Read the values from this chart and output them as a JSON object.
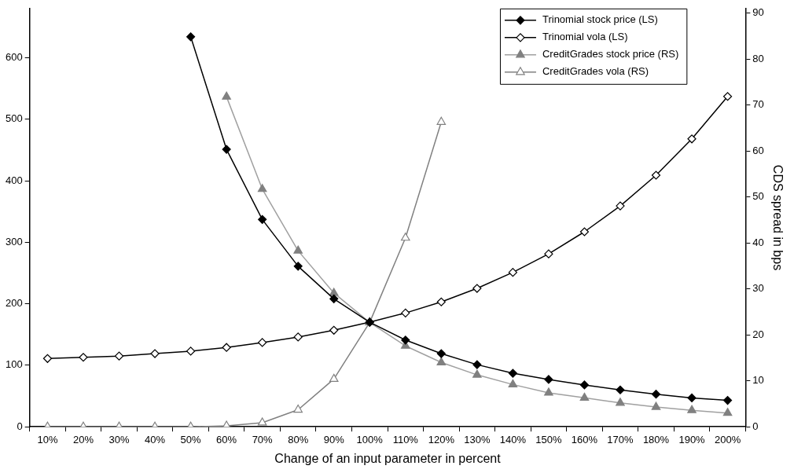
{
  "chart_data": {
    "type": "line",
    "xlabel": "Change of an input parameter in percent",
    "y2label": "CDS spread in bps",
    "categories": [
      "10%",
      "20%",
      "30%",
      "40%",
      "50%",
      "60%",
      "70%",
      "80%",
      "90%",
      "100%",
      "110%",
      "120%",
      "130%",
      "140%",
      "150%",
      "160%",
      "170%",
      "180%",
      "190%",
      "200%"
    ],
    "series": [
      {
        "name": "Trinomial stock price (LS)",
        "color": "#000000",
        "marker": "diamond",
        "values": [
          null,
          null,
          null,
          null,
          634,
          451,
          337,
          261,
          208,
          170,
          141,
          119,
          101,
          87,
          77,
          68,
          60,
          53,
          47,
          43
        ]
      },
      {
        "name": "Trinomial vola (LS)",
        "color": "#000000",
        "marker": "diamond",
        "values": [
          111,
          113,
          115,
          119,
          123,
          129,
          137,
          146,
          157,
          170,
          185,
          203,
          225,
          251,
          281,
          317,
          359,
          409,
          468,
          537
        ]
      },
      {
        "name": "CreditGrades stock price (RS)",
        "color": "#a0a0a0",
        "marker": "triangle",
        "axis": "y2",
        "values": [
          null,
          null,
          null,
          null,
          null,
          71.8,
          51.7,
          38.3,
          29.1,
          22.7,
          17.6,
          14.0,
          11.3,
          9.2,
          7.4,
          6.3,
          5.2,
          4.3,
          3.6,
          3.0
        ]
      },
      {
        "name": "CreditGrades vola (RS)",
        "color": "#808080",
        "marker": "triangle",
        "axis": "y2",
        "values": [
          0,
          0,
          0,
          0,
          0,
          0.2,
          0.9,
          3.7,
          10.4,
          22.7,
          41.1,
          66.3,
          null,
          null,
          null,
          null,
          null,
          null,
          null,
          null
        ]
      }
    ],
    "ylim": [
      0,
      680
    ],
    "yticks": [
      0,
      100,
      200,
      300,
      400,
      500,
      600
    ],
    "y2lim": [
      0,
      91
    ],
    "y2ticks": [
      0,
      10,
      20,
      30,
      40,
      50,
      60,
      70,
      80,
      90
    ],
    "legend": "top right",
    "grid": false
  }
}
